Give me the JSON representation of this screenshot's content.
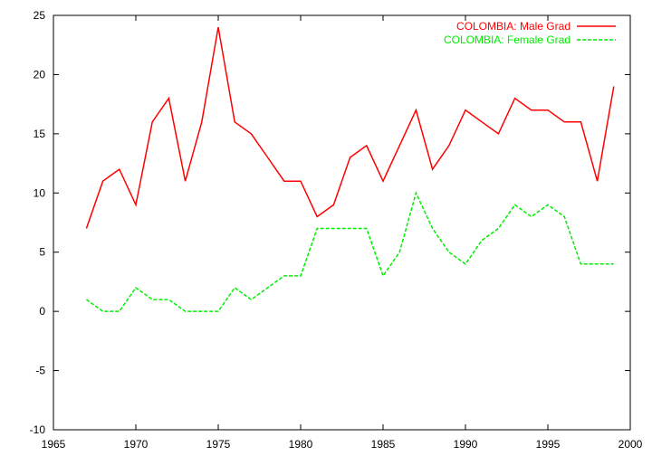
{
  "chart_data": {
    "type": "line",
    "title": "",
    "xlabel": "",
    "ylabel": "",
    "xlim": [
      1965,
      2000
    ],
    "ylim": [
      -10,
      25
    ],
    "xticks": [
      1965,
      1970,
      1975,
      1980,
      1985,
      1990,
      1995,
      2000
    ],
    "yticks": [
      -10,
      -5,
      0,
      5,
      10,
      15,
      20,
      25
    ],
    "grid": false,
    "legend_position": "top-right",
    "x": [
      1967,
      1968,
      1969,
      1970,
      1971,
      1972,
      1973,
      1974,
      1975,
      1976,
      1977,
      1978,
      1979,
      1980,
      1981,
      1982,
      1983,
      1984,
      1985,
      1986,
      1987,
      1988,
      1989,
      1990,
      1991,
      1992,
      1993,
      1994,
      1995,
      1996,
      1997,
      1998,
      1999
    ],
    "series": [
      {
        "name": "COLOMBIA: Male Grad",
        "color": "#ff0000",
        "dash": "solid",
        "values": [
          7,
          11,
          12,
          9,
          16,
          18,
          11,
          16,
          24,
          16,
          15,
          13,
          11,
          11,
          8,
          9,
          13,
          14,
          11,
          14,
          17,
          12,
          14,
          17,
          16,
          15,
          18,
          17,
          17,
          16,
          16,
          11,
          19
        ]
      },
      {
        "name": "COLOMBIA: Female Grad",
        "color": "#00ee00",
        "dash": "dashed",
        "values": [
          1,
          0,
          0,
          2,
          1,
          1,
          0,
          0,
          0,
          2,
          1,
          2,
          3,
          3,
          7,
          7,
          7,
          7,
          3,
          5,
          10,
          7,
          5,
          4,
          6,
          7,
          9,
          8,
          9,
          8,
          4,
          4,
          4
        ]
      }
    ]
  }
}
